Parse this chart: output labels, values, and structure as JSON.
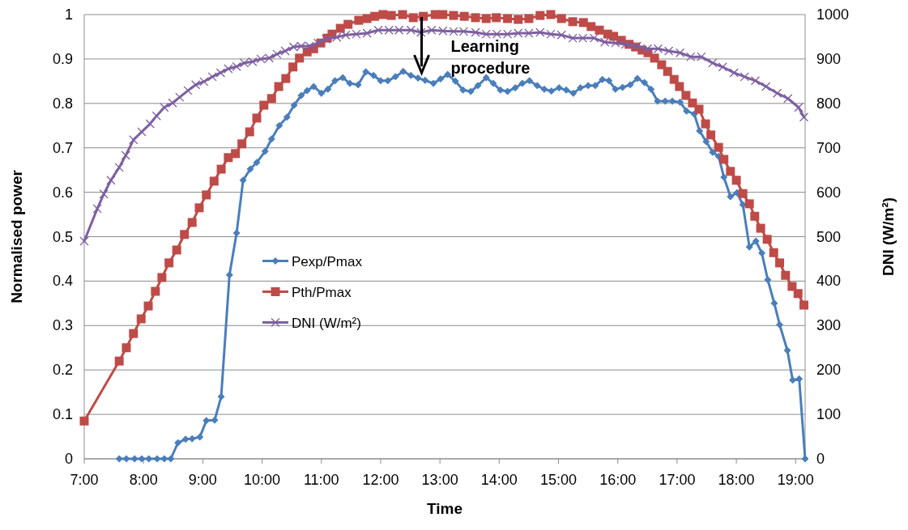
{
  "chart_data": {
    "type": "line",
    "xlabel": "Time",
    "ylabel": "Normalised power",
    "y2label": "DNI (W/m²)",
    "xlim": [
      7,
      19.16
    ],
    "xticks": [
      {
        "value": 7,
        "label": "7:00"
      },
      {
        "value": 8,
        "label": "8:00"
      },
      {
        "value": 9,
        "label": "9:00"
      },
      {
        "value": 10,
        "label": "10:00"
      },
      {
        "value": 11,
        "label": "11:00"
      },
      {
        "value": 12,
        "label": "12:00"
      },
      {
        "value": 13,
        "label": "13:00"
      },
      {
        "value": 14,
        "label": "14:00"
      },
      {
        "value": 15,
        "label": "15:00"
      },
      {
        "value": 16,
        "label": "16:00"
      },
      {
        "value": 17,
        "label": "17:00"
      },
      {
        "value": 18,
        "label": "18:00"
      },
      {
        "value": 19,
        "label": "19:00"
      }
    ],
    "ylim": [
      0,
      1
    ],
    "yticks": [
      0,
      0.1,
      0.2,
      0.3,
      0.4,
      0.5,
      0.6,
      0.7,
      0.8,
      0.9,
      1
    ],
    "y2lim": [
      0,
      1000
    ],
    "y2ticks": [
      0,
      100,
      200,
      300,
      400,
      500,
      600,
      700,
      800,
      900,
      1000
    ],
    "grid": "y",
    "legend": "center",
    "line_style": "solid",
    "annotations": [
      "Learning procedure"
    ],
    "series": [
      {
        "name": "Pexp/Pmax",
        "color": "#4a7ebb",
        "marker": "diamond",
        "x": [
          7.59,
          7.71,
          7.85,
          7.97,
          8.09,
          8.23,
          8.35,
          8.46,
          8.58,
          8.71,
          8.82,
          8.95,
          9.06,
          9.2,
          9.31,
          9.45,
          9.57,
          9.68,
          9.8,
          9.91,
          10.05,
          10.16,
          10.29,
          10.42,
          10.54,
          10.66,
          10.76,
          10.87,
          11,
          11.11,
          11.23,
          11.36,
          11.48,
          11.62,
          11.75,
          11.88,
          12,
          12.12,
          12.25,
          12.38,
          12.51,
          12.63,
          12.75,
          12.89,
          13.01,
          13.13,
          13.26,
          13.39,
          13.52,
          13.64,
          13.78,
          13.9,
          14.02,
          14.14,
          14.27,
          14.39,
          14.51,
          14.64,
          14.76,
          14.88,
          15.01,
          15.13,
          15.25,
          15.37,
          15.5,
          15.62,
          15.74,
          15.85,
          15.96,
          16.08,
          16.21,
          16.33,
          16.45,
          16.56,
          16.67,
          16.8,
          16.92,
          17.05,
          17.16,
          17.29,
          17.38,
          17.49,
          17.6,
          17.7,
          17.79,
          17.9,
          18.01,
          18.11,
          18.22,
          18.33,
          18.43,
          18.53,
          18.64,
          18.73,
          18.86,
          18.95,
          19.06,
          19.16
        ],
        "values": [
          0,
          0,
          0,
          0,
          0,
          0,
          0,
          0,
          0.036,
          0.044,
          0.045,
          0.049,
          0.086,
          0.087,
          0.14,
          0.414,
          0.508,
          0.627,
          0.652,
          0.667,
          0.692,
          0.72,
          0.75,
          0.769,
          0.796,
          0.818,
          0.829,
          0.838,
          0.823,
          0.832,
          0.851,
          0.858,
          0.845,
          0.842,
          0.871,
          0.863,
          0.851,
          0.851,
          0.86,
          0.872,
          0.863,
          0.857,
          0.852,
          0.845,
          0.855,
          0.865,
          0.85,
          0.83,
          0.827,
          0.84,
          0.858,
          0.845,
          0.83,
          0.827,
          0.835,
          0.845,
          0.851,
          0.84,
          0.832,
          0.828,
          0.835,
          0.83,
          0.823,
          0.835,
          0.84,
          0.84,
          0.854,
          0.851,
          0.832,
          0.836,
          0.842,
          0.856,
          0.847,
          0.832,
          0.805,
          0.805,
          0.805,
          0.803,
          0.783,
          0.776,
          0.738,
          0.714,
          0.69,
          0.681,
          0.634,
          0.59,
          0.599,
          0.572,
          0.477,
          0.49,
          0.463,
          0.403,
          0.35,
          0.302,
          0.244,
          0.177,
          0.18,
          0
        ]
      },
      {
        "name": "Pth/Pmax",
        "color": "#be4b48",
        "marker": "square",
        "x": [
          7,
          7.59,
          7.71,
          7.83,
          7.96,
          8.08,
          8.2,
          8.31,
          8.43,
          8.56,
          8.69,
          8.82,
          8.94,
          9.06,
          9.19,
          9.31,
          9.43,
          9.55,
          9.66,
          9.79,
          9.91,
          10.03,
          10.16,
          10.28,
          10.4,
          10.52,
          10.63,
          10.76,
          10.87,
          10.99,
          11.1,
          11.18,
          11.32,
          11.45,
          11.63,
          11.77,
          11.9,
          12.04,
          12.18,
          12.37,
          12.55,
          12.72,
          12.92,
          13.05,
          13.23,
          13.41,
          13.6,
          13.78,
          13.95,
          14.14,
          14.32,
          14.5,
          14.69,
          14.87,
          15.05,
          15.24,
          15.42,
          15.55,
          15.69,
          15.83,
          15.93,
          16.06,
          16.19,
          16.3,
          16.41,
          16.51,
          16.62,
          16.74,
          16.84,
          16.95,
          17.04,
          17.15,
          17.26,
          17.37,
          17.48,
          17.57,
          17.7,
          17.79,
          17.9,
          18,
          18.11,
          18.22,
          18.31,
          18.41,
          18.52,
          18.63,
          18.73,
          18.83,
          18.94,
          19.04,
          19.14
        ],
        "values": [
          0.085,
          0.22,
          0.25,
          0.282,
          0.315,
          0.344,
          0.377,
          0.408,
          0.441,
          0.47,
          0.505,
          0.532,
          0.565,
          0.594,
          0.625,
          0.652,
          0.678,
          0.687,
          0.709,
          0.736,
          0.767,
          0.796,
          0.811,
          0.838,
          0.856,
          0.882,
          0.902,
          0.916,
          0.923,
          0.936,
          0.947,
          0.956,
          0.969,
          0.978,
          0.987,
          0.991,
          0.996,
          1,
          0.998,
          1,
          0.993,
          0.996,
          1,
          1,
          0.998,
          0.996,
          0.993,
          0.991,
          0.993,
          0.991,
          0.989,
          0.991,
          0.998,
          1,
          0.991,
          0.984,
          0.982,
          0.973,
          0.965,
          0.956,
          0.951,
          0.942,
          0.933,
          0.927,
          0.92,
          0.914,
          0.902,
          0.887,
          0.872,
          0.854,
          0.838,
          0.818,
          0.801,
          0.787,
          0.754,
          0.729,
          0.701,
          0.674,
          0.647,
          0.627,
          0.597,
          0.574,
          0.546,
          0.519,
          0.494,
          0.464,
          0.441,
          0.413,
          0.388,
          0.372,
          0.346
        ]
      },
      {
        "name": "DNI (W/m²)",
        "color": "#7d5fa0",
        "marker": "cross",
        "axis": "y2",
        "x": [
          7,
          7.22,
          7.33,
          7.45,
          7.59,
          7.7,
          7.83,
          7.97,
          8.11,
          8.22,
          8.35,
          8.49,
          8.61,
          8.75,
          8.88,
          9.02,
          9.16,
          9.3,
          9.43,
          9.57,
          9.7,
          9.84,
          9.98,
          10.12,
          10.25,
          10.39,
          10.53,
          10.66,
          10.8,
          10.94,
          11.08,
          11.26,
          11.41,
          11.59,
          11.77,
          11.96,
          12.14,
          12.31,
          12.51,
          12.68,
          12.86,
          13.05,
          13.23,
          13.4,
          13.6,
          13.78,
          13.96,
          14.14,
          14.32,
          14.5,
          14.69,
          14.87,
          15.05,
          15.24,
          15.41,
          15.6,
          15.78,
          15.96,
          16.13,
          16.32,
          16.5,
          16.68,
          16.86,
          17.05,
          17.23,
          17.41,
          17.6,
          17.77,
          17.96,
          18.14,
          18.32,
          18.5,
          18.69,
          18.87,
          19.05,
          19.14
        ],
        "values": [
          490,
          563,
          596,
          627,
          656,
          683,
          718,
          736,
          754,
          772,
          791,
          801,
          814,
          829,
          842,
          849,
          860,
          869,
          878,
          883,
          891,
          894,
          900,
          902,
          911,
          918,
          927,
          929,
          929,
          936,
          945,
          949,
          954,
          956,
          958,
          965,
          965,
          965,
          965,
          960,
          965,
          963,
          962,
          962,
          960,
          956,
          956,
          956,
          958,
          958,
          960,
          956,
          954,
          947,
          947,
          947,
          938,
          936,
          933,
          929,
          923,
          923,
          918,
          914,
          905,
          905,
          891,
          882,
          869,
          860,
          851,
          838,
          823,
          811,
          791,
          769
        ]
      }
    ]
  }
}
